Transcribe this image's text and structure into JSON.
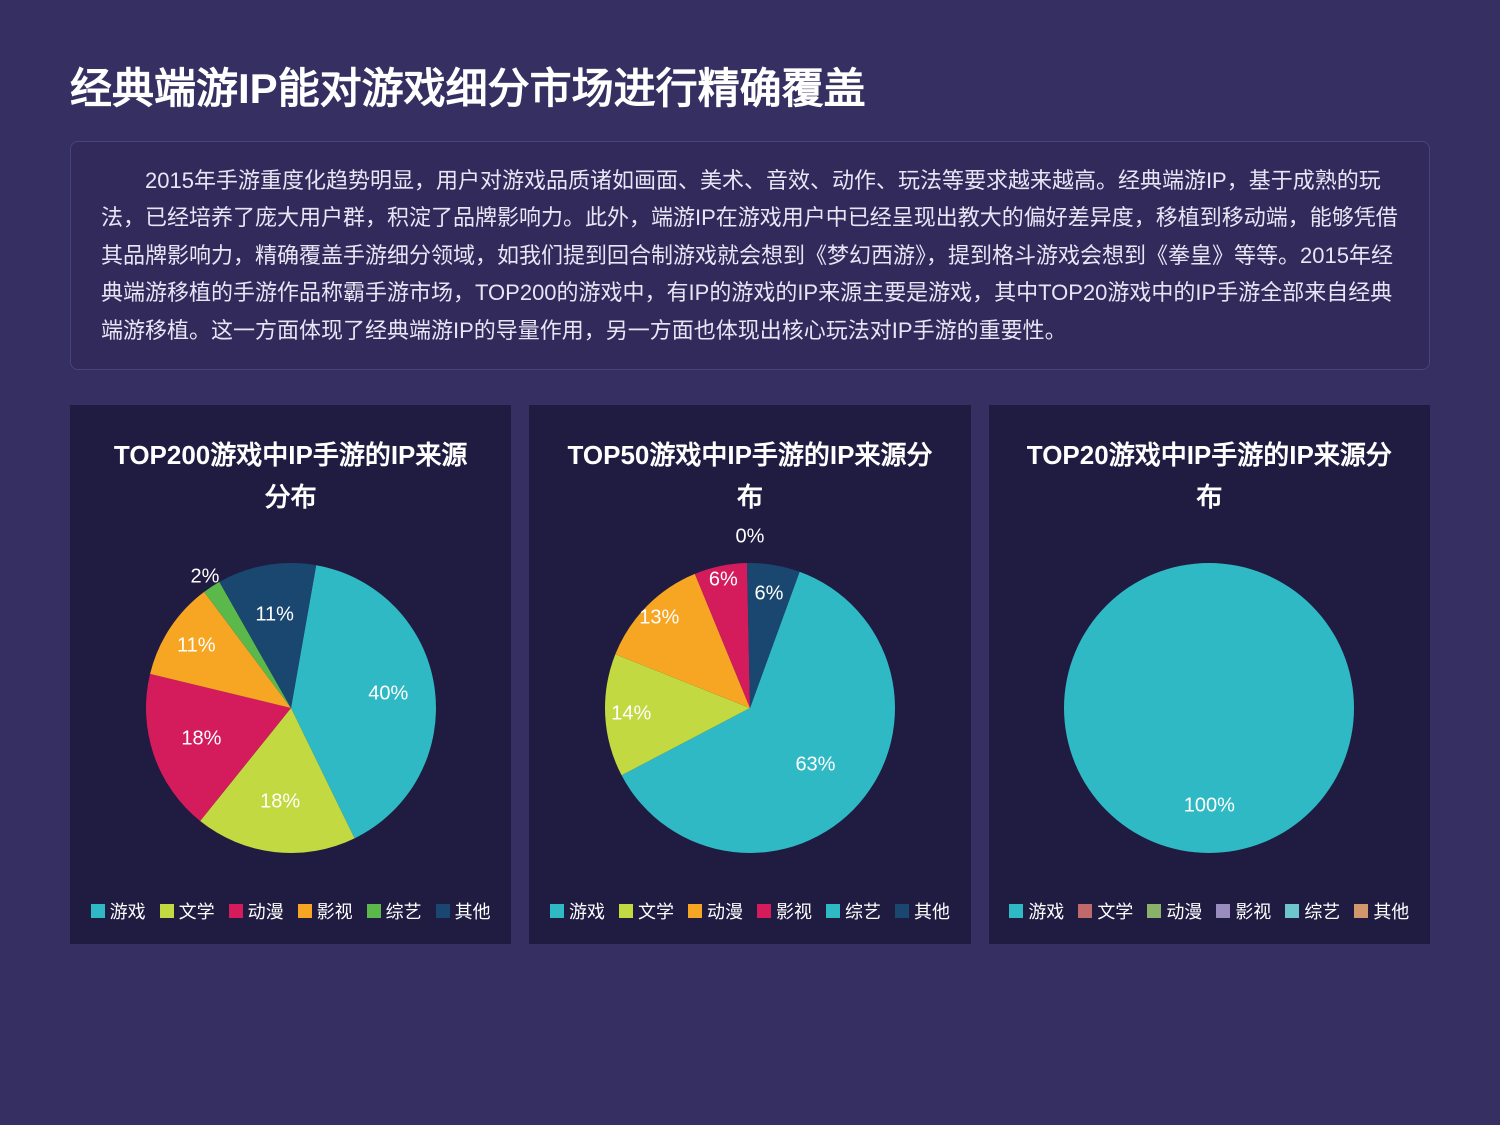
{
  "page": {
    "title": "经典端游IP能对游戏细分市场进行精确覆盖",
    "description": "2015年手游重度化趋势明显，用户对游戏品质诸如画面、美术、音效、动作、玩法等要求越来越高。经典端游IP，基于成熟的玩法，已经培养了庞大用户群，积淀了品牌影响力。此外，端游IP在游戏用户中已经呈现出教大的偏好差异度，移植到移动端，能够凭借其品牌影响力，精确覆盖手游细分领域，如我们提到回合制游戏就会想到《梦幻西游》，提到格斗游戏会想到《拳皇》等等。2015年经典端游移植的手游作品称霸手游市场，TOP200的游戏中，有IP的游戏的IP来源主要是游戏，其中TOP20游戏中的IP手游全部来自经典端游移植。这一方面体现了经典端游IP的导量作用，另一方面也体现出核心玩法对IP手游的重要性。",
    "background": "#362f62",
    "panel_background": "#201b41",
    "desc_background": "#312a5b"
  },
  "legend_order": [
    "游戏",
    "文学",
    "动漫",
    "影视",
    "综艺",
    "其他"
  ],
  "charts": [
    {
      "title": "TOP200游戏中IP手游的IP来源分布",
      "type": "pie",
      "start_angle_deg": -80,
      "radius": 145,
      "slices": [
        {
          "label": "游戏",
          "value": 40,
          "color": "#2fb9c4",
          "show_label": true,
          "label_r": 0.68
        },
        {
          "label": "文学",
          "value": 18,
          "color": "#c3d941",
          "show_label": true,
          "label_r": 0.65
        },
        {
          "label": "动漫",
          "value": 18,
          "color": "#d41c5c",
          "show_label": true,
          "label_r": 0.65
        },
        {
          "label": "影视",
          "value": 11,
          "color": "#f6a623",
          "show_label": true,
          "label_r": 0.78
        },
        {
          "label": "综艺",
          "value": 2,
          "color": "#5bb94c",
          "show_label": true,
          "label_r": 1.08
        },
        {
          "label": "其他",
          "value": 11,
          "color": "#1a476f",
          "show_label": true,
          "label_r": 0.65
        }
      ],
      "legend_colors": {
        "游戏": "#2fb9c4",
        "文学": "#c3d941",
        "动漫": "#d41c5c",
        "影视": "#f6a623",
        "综艺": "#5bb94c",
        "其他": "#1a476f"
      }
    },
    {
      "title": "TOP50游戏中IP手游的IP来源分布",
      "type": "pie",
      "start_angle_deg": -70,
      "radius": 145,
      "slices": [
        {
          "label": "游戏",
          "value": 63,
          "color": "#2fb9c4",
          "show_label": true,
          "label_r": 0.6
        },
        {
          "label": "文学",
          "value": 14,
          "color": "#c3d941",
          "show_label": true,
          "label_r": 0.82
        },
        {
          "label": "动漫",
          "value": 13,
          "color": "#f6a623",
          "show_label": true,
          "label_r": 0.88
        },
        {
          "label": "影视",
          "value": 6,
          "color": "#d41c5c",
          "show_label": true,
          "label_r": 0.9
        },
        {
          "label": "综艺",
          "value": 0,
          "color": "#2fb9c4",
          "show_label": true,
          "label_r": 1.18,
          "force_angle_deg": -90
        },
        {
          "label": "其他",
          "value": 6,
          "color": "#1a476f",
          "show_label": true,
          "label_r": 0.8
        }
      ],
      "skip_zero_arc": true,
      "legend_colors": {
        "游戏": "#2fb9c4",
        "文学": "#c3d941",
        "动漫": "#f6a623",
        "影视": "#d41c5c",
        "综艺": "#2fb9c4",
        "其他": "#1a476f"
      }
    },
    {
      "title": "TOP20游戏中IP手游的IP来源分布",
      "type": "pie",
      "start_angle_deg": -90,
      "radius": 145,
      "slices": [
        {
          "label": "游戏",
          "value": 100,
          "color": "#2fb9c4",
          "show_label": true,
          "label_r": 0.4,
          "label_dy": 40
        }
      ],
      "legend_colors": {
        "游戏": "#2fb9c4",
        "文学": "#c0696a",
        "动漫": "#8ab06a",
        "影视": "#9b8cc0",
        "综艺": "#6fc5cc",
        "其他": "#d2976a"
      }
    }
  ]
}
